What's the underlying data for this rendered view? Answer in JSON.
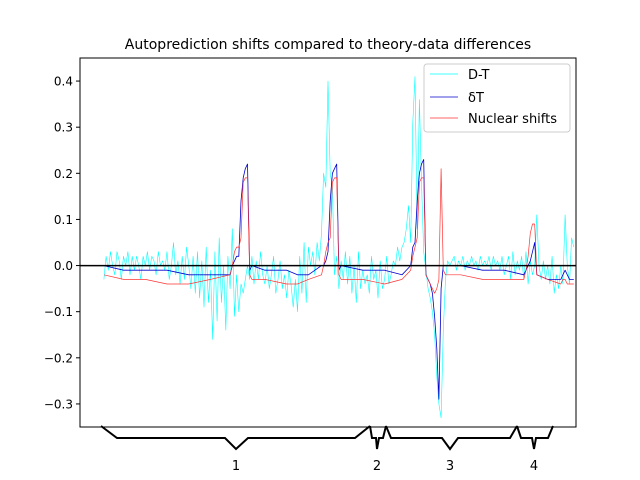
{
  "chart_data": {
    "type": "line",
    "title": "Autoprediction shifts compared to theory-data differences",
    "xlabel": "",
    "ylabel": "",
    "ylim": [
      -0.35,
      0.45
    ],
    "yticks": [
      -0.3,
      -0.2,
      -0.1,
      0.0,
      0.1,
      0.2,
      0.3,
      0.4
    ],
    "ytick_labels": [
      "−0.3",
      "−0.2",
      "−0.1",
      "0.0",
      "0.1",
      "0.2",
      "0.3",
      "0.4"
    ],
    "x_range": [
      0,
      228
    ],
    "legend_position": "upper right",
    "grid": false,
    "zero_line": true,
    "series": [
      {
        "name": "D-T",
        "color": "#00ffff"
      },
      {
        "name": "δT",
        "color": "#0000cd"
      },
      {
        "name": "Nuclear shifts",
        "color": "#ff3333"
      }
    ],
    "group_labels": [
      "1",
      "2",
      "3",
      "4"
    ],
    "points": {
      "D-T": [
        [
          11,
          -0.03
        ],
        [
          12,
          0.02
        ],
        [
          13,
          -0.01
        ],
        [
          14,
          0.03
        ],
        [
          15,
          0.0
        ],
        [
          16,
          -0.02
        ],
        [
          17,
          0.03
        ],
        [
          18,
          0.01
        ],
        [
          19,
          -0.03
        ],
        [
          20,
          0.02
        ],
        [
          21,
          0.0
        ],
        [
          22,
          0.03
        ],
        [
          23,
          -0.02
        ],
        [
          24,
          0.02
        ],
        [
          25,
          -0.01
        ],
        [
          26,
          0.02
        ],
        [
          27,
          0.0
        ],
        [
          28,
          -0.03
        ],
        [
          29,
          0.02
        ],
        [
          30,
          0.0
        ],
        [
          31,
          0.03
        ],
        [
          32,
          -0.01
        ],
        [
          33,
          0.02
        ],
        [
          34,
          0.01
        ],
        [
          35,
          -0.02
        ],
        [
          36,
          0.03
        ],
        [
          37,
          0.0
        ],
        [
          38,
          0.01
        ],
        [
          39,
          -0.01
        ],
        [
          40,
          0.03
        ],
        [
          41,
          -0.03
        ],
        [
          42,
          0.0
        ],
        [
          43,
          0.05
        ],
        [
          44,
          -0.02
        ],
        [
          45,
          0.01
        ],
        [
          46,
          -0.04
        ],
        [
          47,
          0.02
        ],
        [
          48,
          -0.03
        ],
        [
          49,
          0.04
        ],
        [
          50,
          0.0
        ],
        [
          51,
          -0.05
        ],
        [
          52,
          0.02
        ],
        [
          53,
          -0.06
        ],
        [
          54,
          0.03
        ],
        [
          55,
          -0.07
        ],
        [
          56,
          0.01
        ],
        [
          57,
          -0.09
        ],
        [
          58,
          0.04
        ],
        [
          59,
          -0.08
        ],
        [
          60,
          -0.01
        ],
        [
          61,
          -0.16
        ],
        [
          62,
          0.03
        ],
        [
          63,
          -0.12
        ],
        [
          64,
          0.06
        ],
        [
          65,
          -0.08
        ],
        [
          66,
          0.0
        ],
        [
          67,
          -0.14
        ],
        [
          68,
          0.02
        ],
        [
          69,
          -0.05
        ],
        [
          70,
          0.08
        ],
        [
          71,
          -0.11
        ],
        [
          72,
          -0.02
        ],
        [
          73,
          -0.1
        ],
        [
          74,
          -0.04
        ],
        [
          75,
          -0.06
        ],
        [
          76,
          -0.03
        ],
        [
          77,
          0.0
        ],
        [
          78,
          -0.03
        ],
        [
          79,
          0.02
        ],
        [
          80,
          -0.04
        ],
        [
          81,
          0.01
        ],
        [
          82,
          -0.03
        ],
        [
          83,
          0.03
        ],
        [
          84,
          -0.02
        ],
        [
          85,
          -0.04
        ],
        [
          86,
          0.0
        ],
        [
          87,
          -0.05
        ],
        [
          88,
          -0.02
        ],
        [
          89,
          0.02
        ],
        [
          90,
          -0.06
        ],
        [
          91,
          -0.03
        ],
        [
          92,
          0.01
        ],
        [
          93,
          -0.05
        ],
        [
          94,
          -0.02
        ],
        [
          95,
          -0.07
        ],
        [
          96,
          -0.01
        ],
        [
          97,
          -0.04
        ],
        [
          98,
          -0.09
        ],
        [
          99,
          -0.03
        ],
        [
          100,
          -0.1
        ],
        [
          101,
          0.02
        ],
        [
          102,
          -0.06
        ],
        [
          103,
          0.05
        ],
        [
          104,
          -0.08
        ],
        [
          105,
          0.04
        ],
        [
          106,
          0.0
        ],
        [
          107,
          0.03
        ],
        [
          108,
          -0.02
        ],
        [
          109,
          0.05
        ],
        [
          110,
          0.01
        ],
        [
          111,
          0.07
        ],
        [
          112,
          0.2
        ],
        [
          113,
          0.17
        ],
        [
          114,
          0.4
        ],
        [
          115,
          0.2
        ],
        [
          116,
          0.17
        ],
        [
          117,
          -0.02
        ],
        [
          118,
          0.02
        ],
        [
          119,
          -0.05
        ],
        [
          120,
          0.01
        ],
        [
          121,
          -0.03
        ],
        [
          122,
          0.03
        ],
        [
          123,
          -0.04
        ],
        [
          124,
          0.02
        ],
        [
          125,
          -0.06
        ],
        [
          126,
          0.0
        ],
        [
          127,
          -0.08
        ],
        [
          128,
          0.03
        ],
        [
          129,
          -0.05
        ],
        [
          130,
          -0.01
        ],
        [
          131,
          -0.04
        ],
        [
          132,
          -0.02
        ],
        [
          133,
          -0.06
        ],
        [
          134,
          0.02
        ],
        [
          135,
          -0.03
        ],
        [
          136,
          -0.01
        ],
        [
          137,
          -0.07
        ],
        [
          138,
          0.01
        ],
        [
          139,
          -0.05
        ],
        [
          140,
          -0.03
        ],
        [
          141,
          0.02
        ],
        [
          142,
          -0.04
        ],
        [
          143,
          -0.02
        ],
        [
          144,
          0.01
        ],
        [
          145,
          0.0
        ],
        [
          146,
          0.04
        ],
        [
          147,
          0.01
        ],
        [
          148,
          0.04
        ],
        [
          149,
          0.05
        ],
        [
          150,
          0.08
        ],
        [
          151,
          0.13
        ],
        [
          152,
          0.05
        ],
        [
          153,
          0.31
        ],
        [
          154,
          0.41
        ],
        [
          155,
          0.08
        ],
        [
          156,
          0.36
        ],
        [
          157,
          0.18
        ],
        [
          158,
          0.03
        ],
        [
          159,
          -0.01
        ],
        [
          160,
          -0.05
        ],
        [
          161,
          -0.07
        ],
        [
          162,
          -0.1
        ],
        [
          163,
          -0.15
        ],
        [
          164,
          -0.24
        ],
        [
          165,
          -0.3
        ],
        [
          166,
          -0.33
        ],
        [
          167,
          -0.14
        ],
        [
          168,
          -0.03
        ],
        [
          169,
          0.01
        ],
        [
          170,
          0.0
        ],
        [
          171,
          0.01
        ],
        [
          172,
          0.02
        ],
        [
          173,
          -0.01
        ],
        [
          174,
          0.01
        ],
        [
          175,
          0.0
        ],
        [
          176,
          0.02
        ],
        [
          177,
          -0.01
        ],
        [
          178,
          0.01
        ],
        [
          179,
          0.0
        ],
        [
          180,
          0.02
        ],
        [
          181,
          0.0
        ],
        [
          182,
          0.01
        ],
        [
          183,
          -0.01
        ],
        [
          184,
          0.02
        ],
        [
          185,
          0.0
        ],
        [
          186,
          0.01
        ],
        [
          187,
          0.0
        ],
        [
          188,
          0.02
        ],
        [
          189,
          -0.01
        ],
        [
          190,
          0.02
        ],
        [
          191,
          0.0
        ],
        [
          192,
          0.01
        ],
        [
          193,
          -0.01
        ],
        [
          194,
          0.02
        ],
        [
          195,
          -0.02
        ],
        [
          196,
          0.0
        ],
        [
          197,
          0.02
        ],
        [
          198,
          -0.03
        ],
        [
          199,
          0.03
        ],
        [
          200,
          -0.02
        ],
        [
          201,
          0.01
        ],
        [
          202,
          -0.01
        ],
        [
          203,
          0.02
        ],
        [
          204,
          -0.03
        ],
        [
          205,
          0.03
        ],
        [
          206,
          -0.04
        ],
        [
          207,
          0.01
        ],
        [
          208,
          -0.02
        ],
        [
          209,
          0.0
        ],
        [
          210,
          0.11
        ],
        [
          211,
          0.0
        ],
        [
          212,
          -0.03
        ],
        [
          213,
          0.01
        ],
        [
          214,
          -0.03
        ],
        [
          215,
          0.0
        ],
        [
          216,
          -0.04
        ],
        [
          217,
          0.02
        ],
        [
          218,
          -0.06
        ],
        [
          219,
          -0.02
        ],
        [
          220,
          -0.05
        ],
        [
          221,
          0.0
        ],
        [
          222,
          -0.04
        ],
        [
          223,
          0.11
        ],
        [
          224,
          0.0
        ],
        [
          225,
          -0.04
        ],
        [
          226,
          0.06
        ],
        [
          227,
          0.04
        ]
      ],
      "δT": [
        [
          11,
          0.0
        ],
        [
          20,
          -0.01
        ],
        [
          30,
          -0.01
        ],
        [
          40,
          -0.01
        ],
        [
          50,
          -0.02
        ],
        [
          60,
          -0.02
        ],
        [
          69,
          -0.02
        ],
        [
          70,
          0.0
        ],
        [
          71,
          0.01
        ],
        [
          72,
          0.02
        ],
        [
          73,
          0.02
        ],
        [
          74,
          0.14
        ],
        [
          75,
          0.19
        ],
        [
          76,
          0.21
        ],
        [
          77,
          0.22
        ],
        [
          78,
          -0.01
        ],
        [
          79,
          0.0
        ],
        [
          85,
          -0.01
        ],
        [
          95,
          -0.01
        ],
        [
          100,
          -0.02
        ],
        [
          105,
          -0.02
        ],
        [
          111,
          0.0
        ],
        [
          112,
          0.0
        ],
        [
          113,
          0.01
        ],
        [
          114,
          0.03
        ],
        [
          115,
          0.14
        ],
        [
          116,
          0.2
        ],
        [
          117,
          0.21
        ],
        [
          118,
          0.22
        ],
        [
          119,
          -0.01
        ],
        [
          120,
          0.0
        ],
        [
          130,
          -0.01
        ],
        [
          140,
          -0.01
        ],
        [
          148,
          -0.02
        ],
        [
          152,
          0.0
        ],
        [
          153,
          0.04
        ],
        [
          154,
          0.05
        ],
        [
          155,
          0.14
        ],
        [
          156,
          0.2
        ],
        [
          157,
          0.22
        ],
        [
          158,
          0.23
        ],
        [
          159,
          -0.02
        ],
        [
          160,
          -0.03
        ],
        [
          161,
          -0.04
        ],
        [
          162,
          -0.06
        ],
        [
          163,
          -0.11
        ],
        [
          164,
          -0.18
        ],
        [
          165,
          -0.29
        ],
        [
          166,
          -0.05
        ],
        [
          167,
          0.0
        ],
        [
          175,
          0.0
        ],
        [
          185,
          -0.01
        ],
        [
          195,
          -0.01
        ],
        [
          204,
          -0.02
        ],
        [
          205,
          -0.01
        ],
        [
          206,
          0.0
        ],
        [
          207,
          0.01
        ],
        [
          208,
          0.03
        ],
        [
          209,
          0.05
        ],
        [
          210,
          -0.02
        ],
        [
          215,
          -0.03
        ],
        [
          221,
          -0.03
        ],
        [
          222,
          -0.02
        ],
        [
          223,
          -0.01
        ],
        [
          224,
          -0.02
        ],
        [
          225,
          -0.03
        ],
        [
          226,
          -0.03
        ],
        [
          227,
          -0.03
        ]
      ],
      "Nuclear shifts": [
        [
          11,
          -0.02
        ],
        [
          20,
          -0.03
        ],
        [
          30,
          -0.03
        ],
        [
          40,
          -0.04
        ],
        [
          50,
          -0.04
        ],
        [
          60,
          -0.03
        ],
        [
          69,
          -0.02
        ],
        [
          70,
          0.0
        ],
        [
          71,
          0.03
        ],
        [
          72,
          0.04
        ],
        [
          73,
          0.04
        ],
        [
          74,
          0.06
        ],
        [
          75,
          0.18
        ],
        [
          76,
          0.19
        ],
        [
          77,
          0.19
        ],
        [
          78,
          -0.02
        ],
        [
          79,
          -0.03
        ],
        [
          85,
          -0.03
        ],
        [
          95,
          -0.04
        ],
        [
          100,
          -0.04
        ],
        [
          105,
          -0.03
        ],
        [
          111,
          -0.02
        ],
        [
          112,
          0.0
        ],
        [
          113,
          0.03
        ],
        [
          114,
          0.05
        ],
        [
          115,
          0.06
        ],
        [
          116,
          0.18
        ],
        [
          117,
          0.19
        ],
        [
          118,
          0.19
        ],
        [
          119,
          -0.02
        ],
        [
          120,
          -0.03
        ],
        [
          130,
          -0.03
        ],
        [
          140,
          -0.04
        ],
        [
          148,
          -0.03
        ],
        [
          152,
          -0.01
        ],
        [
          153,
          0.02
        ],
        [
          154,
          0.04
        ],
        [
          155,
          0.06
        ],
        [
          156,
          0.18
        ],
        [
          157,
          0.19
        ],
        [
          158,
          0.19
        ],
        [
          159,
          -0.02
        ],
        [
          160,
          -0.03
        ],
        [
          161,
          -0.04
        ],
        [
          162,
          -0.05
        ],
        [
          163,
          -0.06
        ],
        [
          164,
          -0.05
        ],
        [
          165,
          -0.03
        ],
        [
          166,
          0.21
        ],
        [
          167,
          -0.01
        ],
        [
          168,
          -0.02
        ],
        [
          175,
          -0.02
        ],
        [
          185,
          -0.03
        ],
        [
          195,
          -0.03
        ],
        [
          204,
          -0.03
        ],
        [
          205,
          -0.01
        ],
        [
          206,
          0.02
        ],
        [
          207,
          0.07
        ],
        [
          208,
          0.09
        ],
        [
          209,
          0.09
        ],
        [
          210,
          -0.02
        ],
        [
          215,
          -0.03
        ],
        [
          221,
          -0.04
        ],
        [
          222,
          -0.03
        ],
        [
          223,
          -0.03
        ],
        [
          224,
          -0.04
        ],
        [
          225,
          -0.04
        ],
        [
          226,
          -0.04
        ],
        [
          227,
          -0.04
        ]
      ]
    }
  }
}
